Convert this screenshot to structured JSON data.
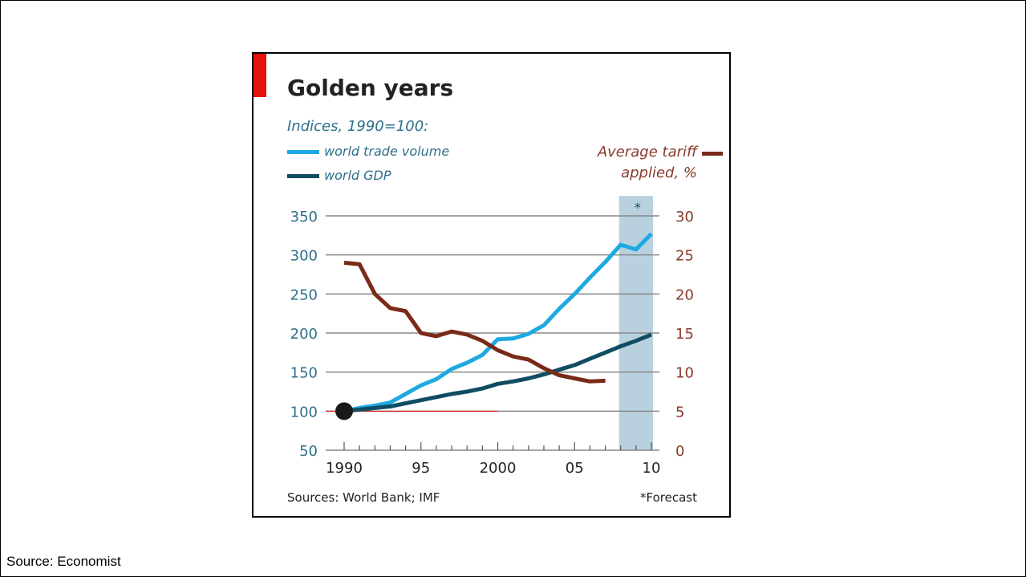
{
  "caption": "Source: Economist",
  "colors": {
    "trade": "#1ea9e1",
    "gdp": "#0f4d63",
    "tariff": "#7a2a18",
    "left_axis": "#2e6f8c",
    "right_axis": "#8b3a2a",
    "forecast_band": "#b9d1df",
    "accent_red": "#e3120b"
  },
  "chart_data": {
    "type": "line",
    "title": "Golden years",
    "subtitle": "Indices, 1990=100:",
    "legend": [
      "world trade volume",
      "world GDP"
    ],
    "right_legend": [
      "Average tariff",
      "applied, %"
    ],
    "left_ylim": [
      50,
      350
    ],
    "right_ylim": [
      0,
      30
    ],
    "left_ticks": [
      350,
      300,
      250,
      200,
      150,
      100,
      50
    ],
    "right_ticks": [
      30,
      25,
      20,
      15,
      10,
      5,
      0
    ],
    "xlim": [
      1990,
      2010
    ],
    "x_tick_labels": [
      {
        "x": 1990,
        "label": "1990"
      },
      {
        "x": 1995,
        "label": "95"
      },
      {
        "x": 2000,
        "label": "2000"
      },
      {
        "x": 2005,
        "label": "05"
      },
      {
        "x": 2010,
        "label": "10"
      }
    ],
    "forecast_range": [
      2008,
      2010
    ],
    "forecast_marker": "*",
    "grid": true,
    "series": [
      {
        "name": "world trade volume",
        "axis": "left",
        "x": [
          1990,
          1991,
          1992,
          1993,
          1994,
          1995,
          1996,
          1997,
          1998,
          1999,
          2000,
          2001,
          2002,
          2003,
          2004,
          2005,
          2006,
          2007,
          2008,
          2009,
          2010
        ],
        "y": [
          100,
          104,
          107,
          111,
          122,
          133,
          141,
          154,
          162,
          172,
          192,
          193,
          199,
          210,
          231,
          250,
          271,
          291,
          313,
          307,
          327
        ]
      },
      {
        "name": "world GDP",
        "axis": "left",
        "x": [
          1990,
          1991,
          1992,
          1993,
          1994,
          1995,
          1996,
          1997,
          1998,
          1999,
          2000,
          2001,
          2002,
          2003,
          2004,
          2005,
          2006,
          2007,
          2008,
          2009,
          2010
        ],
        "y": [
          100,
          102,
          104,
          106,
          110,
          114,
          118,
          122,
          125,
          129,
          135,
          138,
          142,
          147,
          153,
          159,
          167,
          175,
          183,
          190,
          198
        ]
      },
      {
        "name": "Average tariff applied, %",
        "axis": "right",
        "x": [
          1990,
          1991,
          1992,
          1993,
          1994,
          1995,
          1996,
          1997,
          1998,
          1999,
          2000,
          2001,
          2002,
          2003,
          2004,
          2005,
          2006,
          2007
        ],
        "y": [
          24,
          23.8,
          20,
          18.2,
          17.8,
          15,
          14.6,
          15.2,
          14.8,
          14,
          12.8,
          12,
          11.6,
          10.5,
          9.6,
          9.2,
          8.8,
          8.9
        ]
      }
    ],
    "baseline_dot": {
      "x": 1990,
      "y": 100
    }
  },
  "sources": "Sources: World Bank; IMF",
  "footnote": "*Forecast"
}
